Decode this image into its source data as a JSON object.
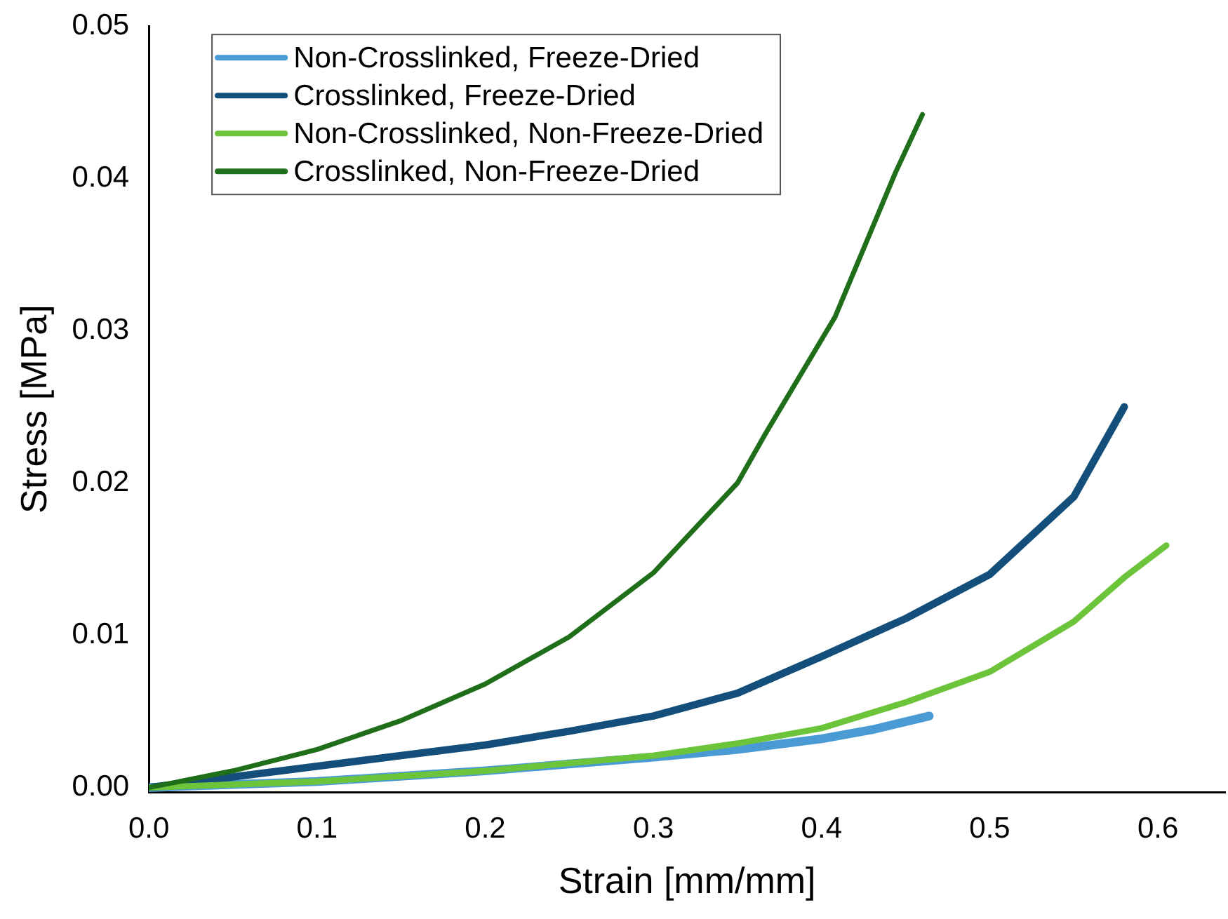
{
  "chart_data": {
    "type": "line",
    "xlabel": "Strain [mm/mm]",
    "ylabel": "Stress [MPa]",
    "xlim": [
      0,
      0.64
    ],
    "xticks": [
      {
        "value": 0,
        "label": "0.0"
      },
      0.1,
      0.2,
      0.3,
      0.4,
      0.5,
      0.6
    ],
    "ylim": [
      -0.0003,
      0.05
    ],
    "yticks": [
      {
        "value": 0,
        "label": "0.00"
      },
      0.01,
      0.02,
      0.03,
      0.04,
      {
        "value": 0.05,
        "label": "0.05"
      }
    ],
    "grid": false,
    "legend": "top left",
    "marker": "none",
    "line_style": "solid",
    "series": [
      {
        "name": "Non-Crosslinked, Freeze-Dried",
        "color": "#4a9bd4",
        "x": [
          0,
          0.1,
          0.2,
          0.3,
          0.35,
          0.4,
          0.43,
          0.464
        ],
        "values": [
          0,
          0.0004,
          0.0011,
          0.002,
          0.0025,
          0.0032,
          0.0038,
          0.0047
        ]
      },
      {
        "name": "Crosslinked, Freeze-Dried",
        "color": "#134f7a",
        "x": [
          0,
          0.05,
          0.1,
          0.15,
          0.2,
          0.25,
          0.3,
          0.35,
          0.4,
          0.45,
          0.5,
          0.55,
          0.58
        ],
        "values": [
          0,
          0.0007,
          0.0014,
          0.0021,
          0.0028,
          0.0037,
          0.0047,
          0.0062,
          0.0086,
          0.0111,
          0.014,
          0.0191,
          0.025
        ]
      },
      {
        "name": "Non-Crosslinked, Non-Freeze-Dried",
        "color": "#6cc43a",
        "x": [
          0,
          0.1,
          0.2,
          0.3,
          0.35,
          0.4,
          0.45,
          0.5,
          0.55,
          0.58,
          0.605
        ],
        "values": [
          0,
          0.0004,
          0.0011,
          0.0021,
          0.0029,
          0.0039,
          0.0056,
          0.0076,
          0.0109,
          0.0138,
          0.0159
        ]
      },
      {
        "name": "Crosslinked, Non-Freeze-Dried",
        "color": "#1f6e1a",
        "x": [
          0,
          0.05,
          0.1,
          0.15,
          0.2,
          0.25,
          0.3,
          0.35,
          0.367,
          0.408,
          0.444,
          0.46
        ],
        "values": [
          0,
          0.0011,
          0.0025,
          0.0044,
          0.0068,
          0.0099,
          0.0141,
          0.02,
          0.0233,
          0.0309,
          0.0404,
          0.0442
        ]
      }
    ]
  }
}
